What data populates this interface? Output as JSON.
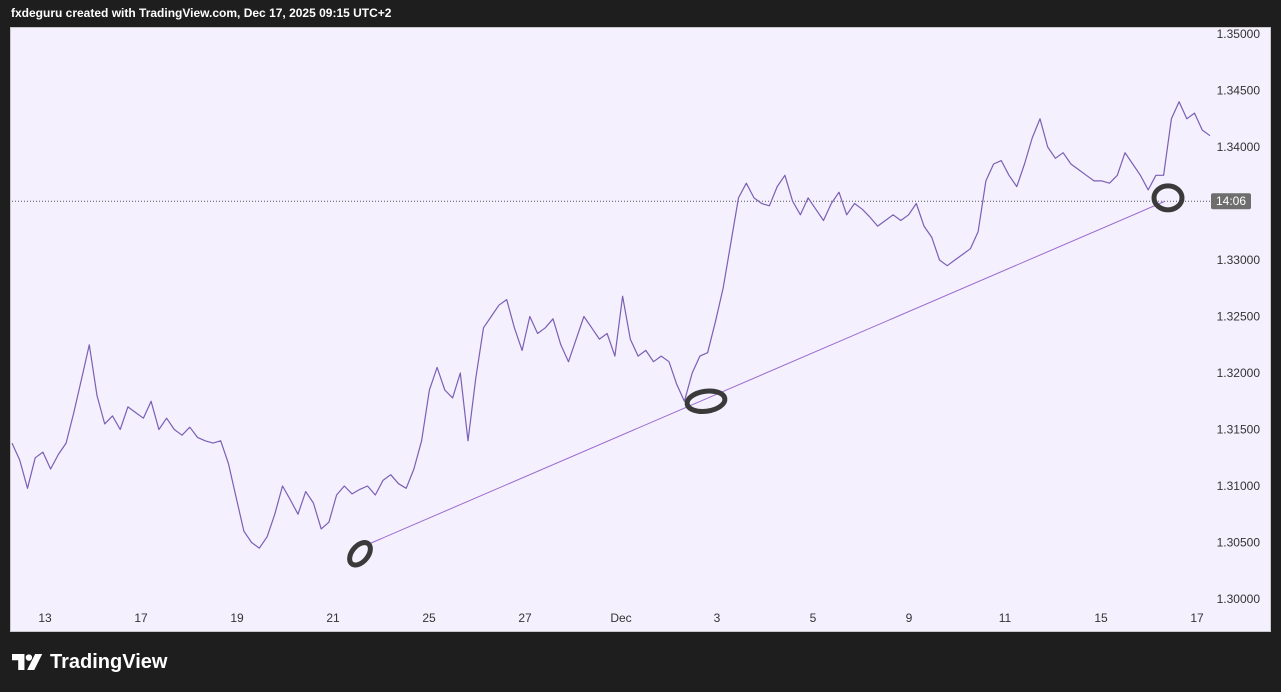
{
  "header": {
    "text": "fxdeguru created with TradingView.com, Dec 17, 2025 09:15 UTC+2"
  },
  "footer": {
    "brand": "TradingView",
    "logo_icon": "tradingview-logo-icon"
  },
  "colors": {
    "line": "#7b5fb4",
    "trendline": "#9a6ad0",
    "marker": "#3a3a3a",
    "panel_bg": "#f4f0fd",
    "page_bg": "#1e1e1e"
  },
  "chart_data": {
    "type": "line",
    "instrument_hint": "FX pair (unlabeled)",
    "x_ticks": [
      "13",
      "17",
      "19",
      "21",
      "25",
      "27",
      "Dec",
      "3",
      "5",
      "9",
      "11",
      "15",
      "17"
    ],
    "y_ticks": [
      "1.35000",
      "1.34500",
      "1.34000",
      "1.33000",
      "1.32500",
      "1.32000",
      "1.31500",
      "1.31000",
      "1.30500",
      "1.30000"
    ],
    "ylim": [
      1.3,
      1.35
    ],
    "grid": false,
    "current_price_label": "14:06",
    "current_price": 1.3352,
    "series": [
      {
        "values": [
          1.3138,
          1.3123,
          1.3098,
          1.3125,
          1.313,
          1.3115,
          1.3128,
          1.3138,
          1.3165,
          1.3195,
          1.3225,
          1.318,
          1.3155,
          1.3162,
          1.315,
          1.317,
          1.3165,
          1.316,
          1.3175,
          1.315,
          1.316,
          1.315,
          1.3145,
          1.3152,
          1.3143,
          1.314,
          1.3138,
          1.314,
          1.312,
          1.309,
          1.306,
          1.305,
          1.3045,
          1.3055,
          1.3075,
          1.31,
          1.3088,
          1.3075,
          1.3095,
          1.3085,
          1.3062,
          1.3068,
          1.3092,
          1.31,
          1.3093,
          1.3097,
          1.31,
          1.3092,
          1.3105,
          1.311,
          1.3102,
          1.3098,
          1.3115,
          1.314,
          1.3185,
          1.3205,
          1.3185,
          1.3178,
          1.32,
          1.314,
          1.3195,
          1.324,
          1.325,
          1.326,
          1.3265,
          1.324,
          1.322,
          1.325,
          1.3235,
          1.324,
          1.3248,
          1.3225,
          1.321,
          1.323,
          1.325,
          1.324,
          1.323,
          1.3235,
          1.3215,
          1.3268,
          1.323,
          1.3215,
          1.322,
          1.321,
          1.3215,
          1.321,
          1.319,
          1.3175,
          1.32,
          1.3215,
          1.3218,
          1.3245,
          1.3275,
          1.3315,
          1.3355,
          1.3368,
          1.3355,
          1.335,
          1.3348,
          1.3365,
          1.3375,
          1.3352,
          1.334,
          1.3355,
          1.3345,
          1.3335,
          1.335,
          1.336,
          1.334,
          1.335,
          1.3345,
          1.3338,
          1.333,
          1.3335,
          1.334,
          1.3335,
          1.334,
          1.335,
          1.333,
          1.332,
          1.33,
          1.3295,
          1.33,
          1.3305,
          1.331,
          1.3325,
          1.337,
          1.3385,
          1.3388,
          1.3375,
          1.3365,
          1.3385,
          1.3408,
          1.3425,
          1.34,
          1.339,
          1.3395,
          1.3385,
          1.338,
          1.3375,
          1.337,
          1.337,
          1.3368,
          1.3375,
          1.3395,
          1.3385,
          1.3375,
          1.3362,
          1.3375,
          1.3375,
          1.3425,
          1.344,
          1.3425,
          1.343,
          1.3415,
          1.341
        ]
      }
    ],
    "annotations": [
      {
        "type": "trendline",
        "from": {
          "x": "Nov 21",
          "y": 1.3048
        },
        "to": {
          "x": "Dec 16",
          "y": 1.3352
        }
      },
      {
        "type": "circle-marker",
        "x": "Nov 21",
        "y": 1.304
      },
      {
        "type": "circle-marker",
        "x": "Dec 3",
        "y": 1.3175
      },
      {
        "type": "circle-marker",
        "x": "Dec 16",
        "y": 1.3355
      }
    ]
  }
}
